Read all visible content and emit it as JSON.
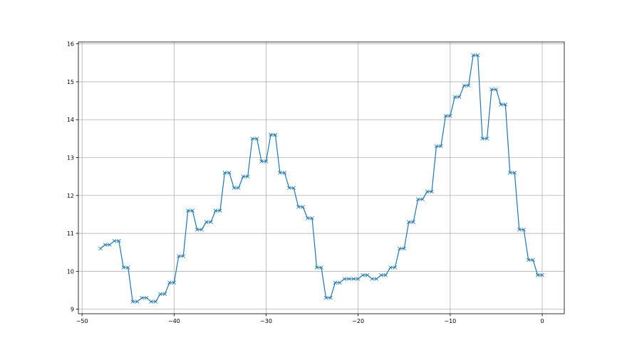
{
  "chart_data": {
    "type": "line",
    "title": "",
    "xlabel": "",
    "ylabel": "",
    "xlim": [
      -50.4,
      2.4
    ],
    "ylim": [
      8.88,
      16.05
    ],
    "xticks": [
      -50,
      -40,
      -30,
      -20,
      -10,
      0
    ],
    "yticks": [
      9,
      10,
      11,
      12,
      13,
      14,
      15,
      16
    ],
    "grid": true,
    "marker": "x",
    "line_color": "#1f77b4",
    "grid_color": "#b0b0b0",
    "x": [
      -48,
      -47.5,
      -47,
      -46.5,
      -46,
      -45.5,
      -45,
      -44.5,
      -44,
      -43.5,
      -43,
      -42.5,
      -42,
      -41.5,
      -41,
      -40.5,
      -40,
      -39.5,
      -39,
      -38.5,
      -38,
      -37.5,
      -37,
      -36.5,
      -36,
      -35.5,
      -35,
      -34.5,
      -34,
      -33.5,
      -33,
      -32.5,
      -32,
      -31.5,
      -31,
      -30.5,
      -30,
      -29.5,
      -29,
      -28.5,
      -28,
      -27.5,
      -27,
      -26.5,
      -26,
      -25.5,
      -25,
      -24.5,
      -24,
      -23.5,
      -23,
      -22.5,
      -22,
      -21.5,
      -21,
      -20.5,
      -20,
      -19.5,
      -19,
      -18.5,
      -18,
      -17.5,
      -17,
      -16.5,
      -16,
      -15.5,
      -15,
      -14.5,
      -14,
      -13.5,
      -13,
      -12.5,
      -12,
      -11.5,
      -11,
      -10.5,
      -10,
      -9.5,
      -9,
      -8.5,
      -8,
      -7.5,
      -7,
      -6.5,
      -6,
      -5.5,
      -5,
      -4.5,
      -4,
      -3.5,
      -3,
      -2.5,
      -2,
      -1.5,
      -1,
      -0.5,
      0
    ],
    "y": [
      10.6,
      10.7,
      10.7,
      10.8,
      10.8,
      10.1,
      10.1,
      9.2,
      9.2,
      9.3,
      9.3,
      9.2,
      9.2,
      9.4,
      9.4,
      9.7,
      9.7,
      10.4,
      10.4,
      11.6,
      11.6,
      11.1,
      11.1,
      11.3,
      11.3,
      11.6,
      11.6,
      12.6,
      12.6,
      12.2,
      12.2,
      12.5,
      12.5,
      13.5,
      13.5,
      12.9,
      12.9,
      13.6,
      13.6,
      12.6,
      12.6,
      12.2,
      12.2,
      11.7,
      11.7,
      11.4,
      11.4,
      10.1,
      10.1,
      9.3,
      9.3,
      9.7,
      9.7,
      9.8,
      9.8,
      9.8,
      9.8,
      9.9,
      9.9,
      9.8,
      9.8,
      9.9,
      9.9,
      10.1,
      10.1,
      10.6,
      10.6,
      11.3,
      11.3,
      11.9,
      11.9,
      12.1,
      12.1,
      13.3,
      13.3,
      14.1,
      14.1,
      14.6,
      14.6,
      14.9,
      14.9,
      15.7,
      15.7,
      13.5,
      13.5,
      14.8,
      14.8,
      14.4,
      14.4,
      12.6,
      12.6,
      11.1,
      11.1,
      10.3,
      10.3,
      9.9,
      9.9
    ]
  },
  "labels": {
    "xticks": [
      "−50",
      "−40",
      "−30",
      "−20",
      "−10",
      "0"
    ],
    "yticks": [
      "9",
      "10",
      "11",
      "12",
      "13",
      "14",
      "15",
      "16"
    ]
  }
}
